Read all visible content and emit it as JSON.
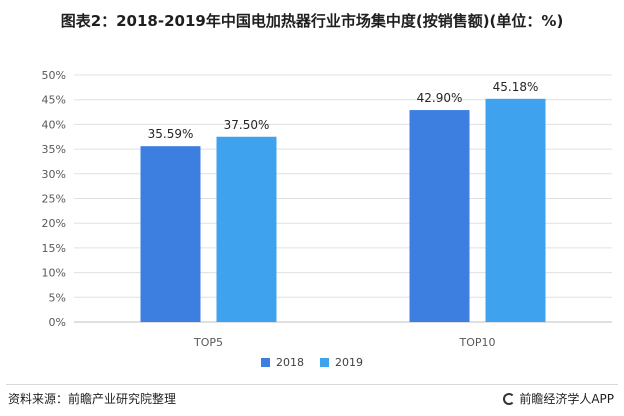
{
  "title": "图表2：2018-2019年中国电加热器行业市场集中度(按销售额)(单位：%)",
  "source": "资料来源：前瞻产业研究院整理",
  "brand": "前瞻经济学人APP",
  "colors": {
    "series_2018": "#3d7fe0",
    "series_2019": "#3fa2ee",
    "gridline": "#e0e0e0",
    "axis_text": "#595959"
  },
  "chart_data": {
    "type": "bar",
    "categories": [
      "TOP5",
      "TOP10"
    ],
    "series": [
      {
        "name": "2018",
        "values": [
          35.59,
          42.9
        ],
        "labels": [
          "35.59%",
          "42.90%"
        ]
      },
      {
        "name": "2019",
        "values": [
          37.5,
          45.18
        ],
        "labels": [
          "37.50%",
          "45.18%"
        ]
      }
    ],
    "ylim": [
      0,
      50
    ],
    "yticks": [
      0,
      5,
      10,
      15,
      20,
      25,
      30,
      35,
      40,
      45,
      50
    ],
    "ytick_labels": [
      "0%",
      "5%",
      "10%",
      "15%",
      "20%",
      "25%",
      "30%",
      "35%",
      "40%",
      "45%",
      "50%"
    ],
    "grid": true,
    "legend_position": "bottom",
    "xlabel": "",
    "ylabel": ""
  }
}
